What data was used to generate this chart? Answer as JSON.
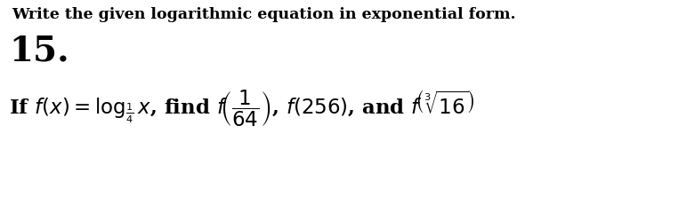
{
  "background_color": "#ffffff",
  "title_text": "Write the given logarithmic equation in exponential form.",
  "number_text": "15.",
  "main_math": "If $f(x) = \\log_{\\frac{1}{4}} x$, find $f\\!\\left(\\dfrac{1}{64}\\right)$, $f(256)$, and $f\\!\\left(\\sqrt[3]{16}\\right)$",
  "title_fontsize": 12.5,
  "number_fontsize": 28,
  "math_fontsize": 16.5,
  "title_color": "#000000",
  "number_color": "#000000",
  "math_color": "#000000",
  "fig_width": 7.81,
  "fig_height": 2.39,
  "dpi": 100
}
